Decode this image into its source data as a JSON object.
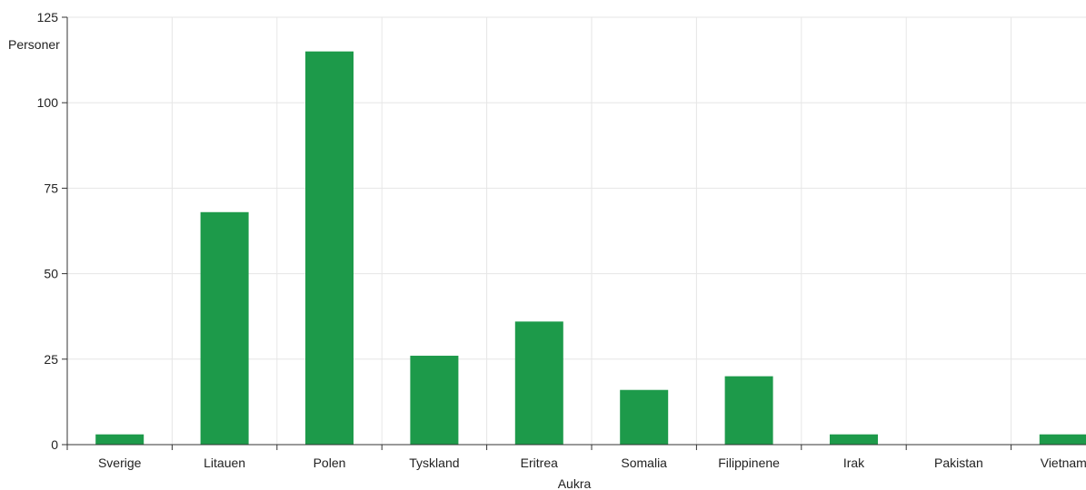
{
  "chart_data": {
    "type": "bar",
    "ylabel": "Personer",
    "xlabel": "Aukra",
    "categories": [
      "Sverige",
      "Litauen",
      "Polen",
      "Tyskland",
      "Eritrea",
      "Somalia",
      "Filippinene",
      "Irak",
      "Pakistan",
      "Vietnam"
    ],
    "values": [
      3,
      68,
      115,
      26,
      36,
      16,
      20,
      3,
      0,
      3
    ],
    "ylim": [
      0,
      125
    ],
    "yticks": [
      0,
      25,
      50,
      75,
      100,
      125
    ],
    "grid": true,
    "legend": "none",
    "bar_color": "#1d9a4a",
    "grid_color": "#e6e6e6",
    "axis_color": "#333333"
  }
}
